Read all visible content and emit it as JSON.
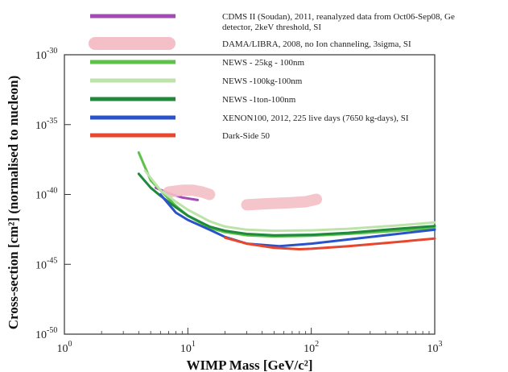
{
  "chart_data": {
    "type": "line",
    "title": "",
    "xlabel": "WIMP Mass [GeV/c²]",
    "ylabel": "Cross-section [cm²] (normalised to nucleon)",
    "xscale": "log",
    "yscale": "log",
    "xlim": [
      1,
      1000
    ],
    "ylim": [
      1e-50,
      1e-30
    ],
    "x_ticks": [
      {
        "value": 1,
        "base": "10",
        "exp": "0"
      },
      {
        "value": 10,
        "base": "10",
        "exp": "1"
      },
      {
        "value": 100,
        "base": "10",
        "exp": "2"
      },
      {
        "value": 1000,
        "base": "10",
        "exp": "3"
      }
    ],
    "y_ticks": [
      {
        "value": 1e-30,
        "base": "10",
        "exp": "-30"
      },
      {
        "value": 1e-35,
        "base": "10",
        "exp": "-35"
      },
      {
        "value": 1e-40,
        "base": "10",
        "exp": "-40"
      },
      {
        "value": 1e-45,
        "base": "10",
        "exp": "-45"
      },
      {
        "value": 1e-50,
        "base": "10",
        "exp": "-50"
      }
    ],
    "grid": false,
    "legend_position": "top",
    "series": [
      {
        "name": "CDMS II (Soudan), 2011, reanalyzed data from Oct06-Sep08, Ge detector, 2keV threshold, SI",
        "color": "#a24bb5",
        "style": "solid",
        "x": [
          5.5,
          7,
          9,
          12
        ],
        "y": [
          3e-40,
          1.2e-40,
          6e-41,
          4e-41
        ]
      },
      {
        "name": "DAMA/LIBRA, 2008, no Ion channeling, 3sigma, SI",
        "color": "#f4bfc6",
        "style": "band",
        "x": [
          7,
          9,
          11,
          13,
          15
        ],
        "y": [
          1.5e-40,
          2e-40,
          2e-40,
          1.5e-40,
          1e-40
        ],
        "x2": [
          30,
          45,
          65,
          90,
          110
        ],
        "y2": [
          1.8e-41,
          2.2e-41,
          2.5e-41,
          3e-41,
          4.5e-41
        ]
      },
      {
        "name": "NEWS - 25kg - 100nm",
        "color": "#5cc24a",
        "style": "solid",
        "x": [
          4,
          5,
          6,
          8,
          10,
          15,
          20,
          30,
          50,
          100,
          200,
          500,
          1000
        ],
        "y": [
          1e-37,
          1e-39,
          2e-40,
          1.5e-41,
          3e-42,
          4e-43,
          2e-43,
          1.2e-43,
          1e-43,
          1.1e-43,
          1.5e-43,
          2.5e-43,
          4e-43
        ]
      },
      {
        "name": "NEWS -100kg-100nm",
        "color": "#bde3a9",
        "style": "solid",
        "x": [
          4.5,
          6,
          8,
          10,
          15,
          20,
          30,
          50,
          100,
          200,
          500,
          1000
        ],
        "y": [
          5e-39,
          2e-40,
          3e-41,
          8e-42,
          1.2e-42,
          5e-43,
          3e-43,
          2.5e-43,
          2.7e-43,
          3.5e-43,
          6e-43,
          1e-42
        ]
      },
      {
        "name": "NEWS -1ton-100nm",
        "color": "#1f8a3c",
        "style": "solid",
        "x": [
          4,
          5,
          6,
          8,
          10,
          15,
          20,
          30,
          50,
          100,
          200,
          500,
          1000
        ],
        "y": [
          3e-39,
          3e-40,
          8e-41,
          1.2e-41,
          3e-42,
          5e-43,
          2.5e-43,
          1.5e-43,
          1.2e-43,
          1.3e-43,
          1.8e-43,
          3.5e-43,
          5.5e-43
        ]
      },
      {
        "name": "XENON100, 2012, 225 live days (7650 kg-days), SI",
        "color": "#2b53c9",
        "style": "solid",
        "x": [
          6,
          7,
          8,
          10,
          15,
          20,
          30,
          55,
          100,
          200,
          500,
          1000
        ],
        "y": [
          1e-40,
          2e-41,
          5e-42,
          1.5e-42,
          3e-43,
          9e-44,
          3e-44,
          2e-44,
          3e-44,
          6e-44,
          1.5e-43,
          3e-43
        ]
      },
      {
        "name": "Dark-Side 50",
        "color": "#e8472e",
        "style": "solid",
        "x": [
          20,
          30,
          50,
          80,
          100,
          200,
          500,
          1000
        ],
        "y": [
          8e-44,
          3e-44,
          1.5e-44,
          1.2e-44,
          1.3e-44,
          2e-44,
          4e-44,
          7e-44
        ]
      }
    ]
  }
}
